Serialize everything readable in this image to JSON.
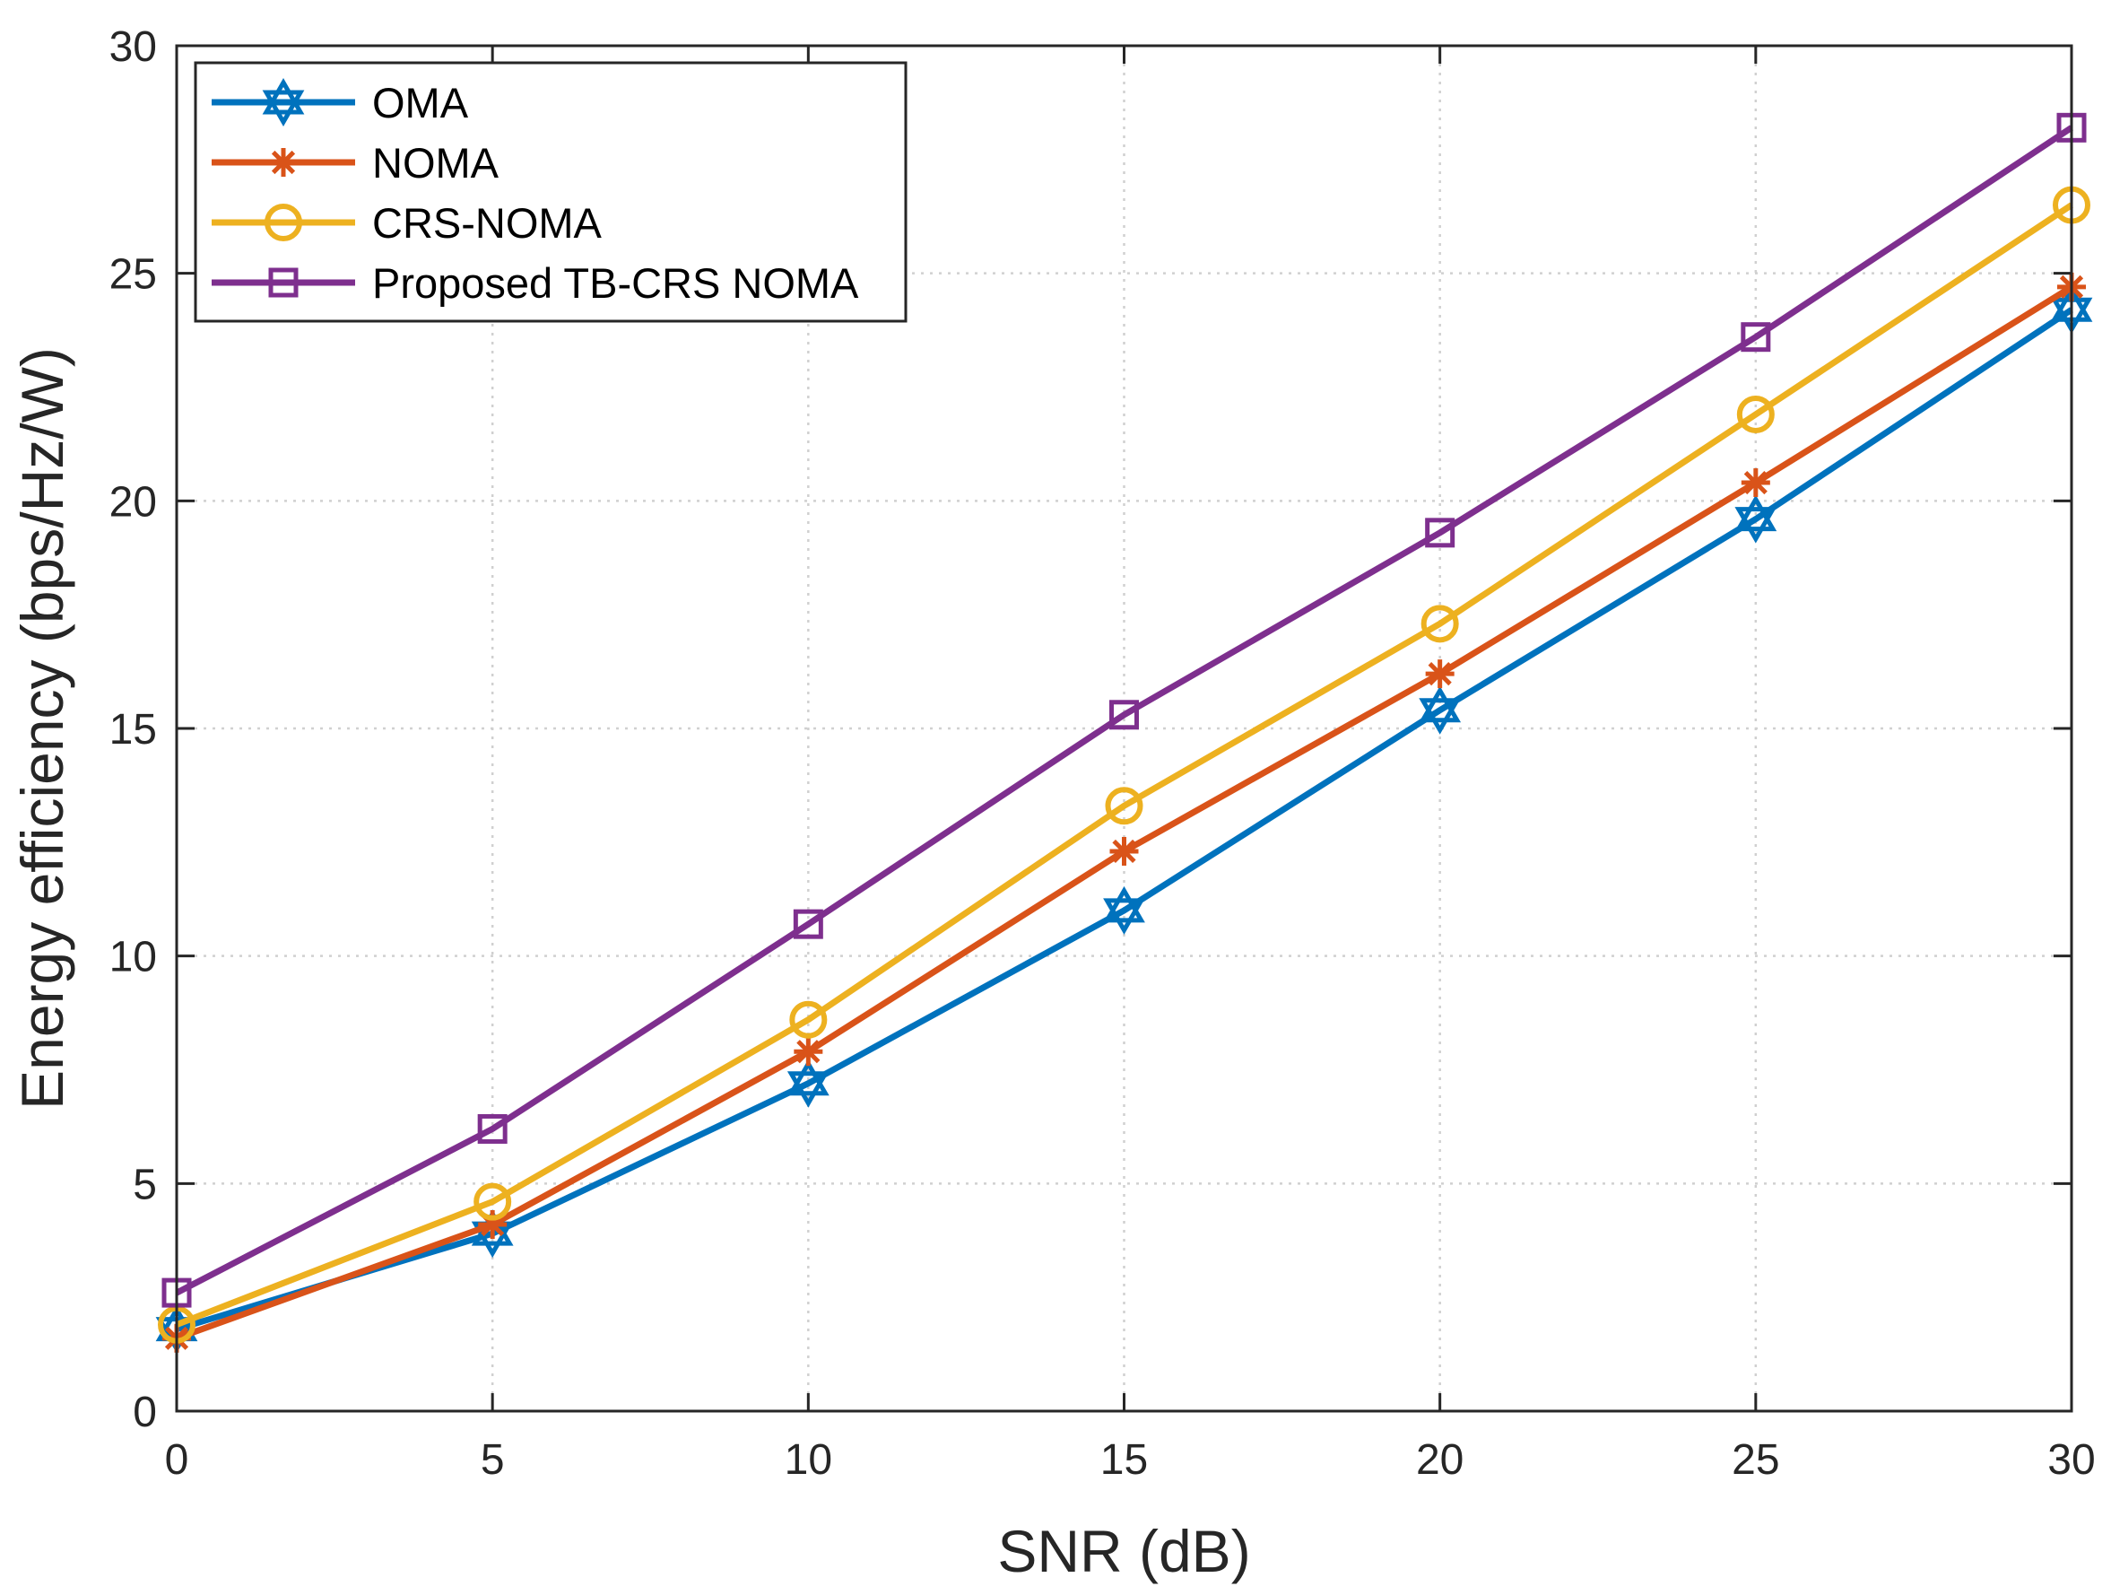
{
  "chart_data": {
    "type": "line",
    "title": "",
    "xlabel": "SNR (dB)",
    "ylabel": "Energy efficiency (bps/Hz/W)",
    "xlim": [
      0,
      30
    ],
    "ylim": [
      0,
      30
    ],
    "xticks": [
      0,
      5,
      10,
      15,
      20,
      25,
      30
    ],
    "yticks": [
      0,
      5,
      10,
      15,
      20,
      25,
      30
    ],
    "grid": true,
    "legend_position": "top-left",
    "x": [
      0,
      5,
      10,
      15,
      20,
      25,
      30
    ],
    "series": [
      {
        "name": "OMA",
        "color": "#0072BD",
        "marker": "hexagram",
        "values": [
          1.8,
          3.9,
          7.2,
          11.0,
          15.4,
          19.6,
          24.2
        ]
      },
      {
        "name": "NOMA",
        "color": "#D95319",
        "marker": "asterisk",
        "values": [
          1.6,
          4.1,
          7.9,
          12.3,
          16.2,
          20.4,
          24.7
        ]
      },
      {
        "name": "CRS-NOMA",
        "color": "#EDB120",
        "marker": "circle",
        "values": [
          1.9,
          4.6,
          8.6,
          13.3,
          17.3,
          21.9,
          26.5
        ]
      },
      {
        "name": "Proposed TB-CRS NOMA",
        "color": "#7E2F8E",
        "marker": "square",
        "values": [
          2.6,
          6.2,
          10.7,
          15.3,
          19.3,
          23.6,
          28.2
        ]
      }
    ]
  }
}
